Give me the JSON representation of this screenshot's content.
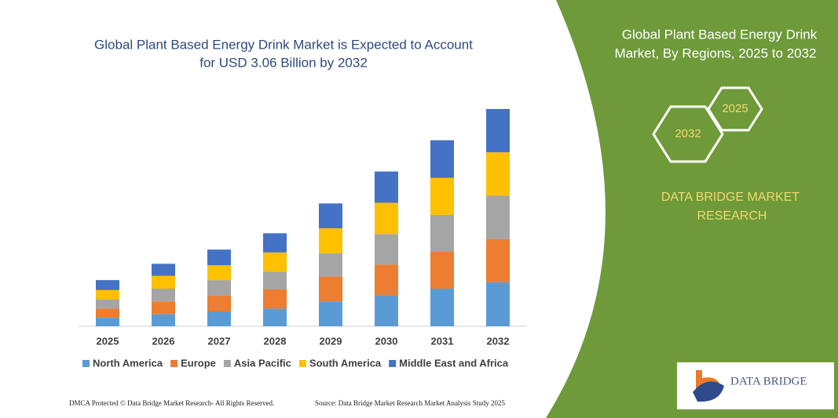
{
  "chart_data": {
    "type": "bar",
    "stacked": true,
    "title": [
      "Global Plant Based Energy Drink Market is Expected to Account",
      "for USD 3.06 Billion by 2032"
    ],
    "categories": [
      "2025",
      "2026",
      "2027",
      "2028",
      "2029",
      "2030",
      "2031",
      "2032"
    ],
    "series": [
      {
        "name": "North America",
        "color": "#5b9bd5",
        "values": [
          0.12,
          0.17,
          0.21,
          0.25,
          0.35,
          0.44,
          0.53,
          0.62
        ]
      },
      {
        "name": "Europe",
        "color": "#ed7d31",
        "values": [
          0.13,
          0.18,
          0.22,
          0.27,
          0.35,
          0.43,
          0.52,
          0.61
        ]
      },
      {
        "name": "Asia Pacific",
        "color": "#a5a5a5",
        "values": [
          0.13,
          0.18,
          0.22,
          0.25,
          0.33,
          0.43,
          0.52,
          0.61
        ]
      },
      {
        "name": "South America",
        "color": "#ffc000",
        "values": [
          0.13,
          0.18,
          0.21,
          0.27,
          0.35,
          0.44,
          0.52,
          0.61
        ]
      },
      {
        "name": "Middle East and Africa",
        "color": "#4472c4",
        "values": [
          0.14,
          0.17,
          0.22,
          0.27,
          0.35,
          0.44,
          0.53,
          0.61
        ]
      }
    ],
    "ylim": [
      0,
      3.06
    ],
    "grid": false
  },
  "panel": {
    "title": [
      "Global Plant Based Energy Drink",
      "Market, By Regions, 2025 to 2032"
    ],
    "hex_small": "2025",
    "hex_large": "2032",
    "brand": [
      "DATA BRIDGE MARKET",
      "RESEARCH"
    ],
    "logo": "DATA BRIDGE"
  },
  "footer": {
    "left": "DMCA Protected © Data Bridge Market Research-  All Rights Reserved.",
    "right": "Source: Data Bridge Market Research  Market Analysis Study 2025"
  }
}
